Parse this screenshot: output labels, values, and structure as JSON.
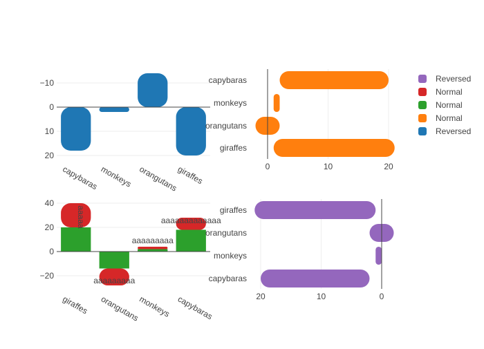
{
  "colors": {
    "blue": "#1f77b4",
    "orange": "#ff7f0e",
    "green": "#2ca02c",
    "red": "#d62728",
    "purple": "#9467bd"
  },
  "legend": [
    {
      "label": "Reversed",
      "color": "#9467bd"
    },
    {
      "label": "Normal",
      "color": "#d62728"
    },
    {
      "label": "Normal",
      "color": "#2ca02c"
    },
    {
      "label": "Normal",
      "color": "#ff7f0e"
    },
    {
      "label": "Reversed",
      "color": "#1f77b4"
    }
  ],
  "chart_data": [
    {
      "type": "bar",
      "orientation": "vertical",
      "y_reversed": true,
      "categories": [
        "capybaras",
        "monkeys",
        "orangutans",
        "giraffes"
      ],
      "series": [
        {
          "name": "Reversed",
          "color": "#1f77b4",
          "values": [
            18,
            2,
            -14,
            20
          ]
        }
      ],
      "yticks": [
        -10,
        0,
        10,
        20
      ],
      "ylim": [
        -14,
        20
      ],
      "grid": true
    },
    {
      "type": "bar",
      "orientation": "horizontal",
      "categories": [
        "capybaras",
        "monkeys",
        "orangutans",
        "giraffes"
      ],
      "series": [
        {
          "name": "Normal",
          "color": "#ff7f0e",
          "base": [
            2,
            1,
            -2,
            1
          ],
          "values": [
            18,
            1,
            4,
            20
          ]
        }
      ],
      "xticks": [
        0,
        10,
        20
      ],
      "xlim": [
        -2,
        21
      ],
      "grid": true
    },
    {
      "type": "bar",
      "orientation": "vertical",
      "stacked": true,
      "categories": [
        "giraffes",
        "orangutans",
        "monkeys",
        "capybaras"
      ],
      "series": [
        {
          "name": "Normal",
          "color": "#2ca02c",
          "values": [
            20,
            -14,
            2,
            18
          ]
        },
        {
          "name": "Normal",
          "color": "#d62728",
          "values": [
            20,
            -14,
            2,
            10
          ],
          "text": [
            "aaaaa",
            "aaaaaaaaa",
            "aaaaaaaaa",
            "aaaaaaaaaaaaa"
          ]
        }
      ],
      "yticks": [
        -20,
        0,
        20,
        40
      ],
      "ylim": [
        -28,
        40
      ],
      "grid": true
    },
    {
      "type": "bar",
      "orientation": "horizontal",
      "x_reversed": true,
      "categories": [
        "capybaras",
        "monkeys",
        "orangutans",
        "giraffes"
      ],
      "series": [
        {
          "name": "Reversed",
          "color": "#9467bd",
          "base": [
            2,
            0,
            -2,
            1
          ],
          "values": [
            18,
            1,
            4,
            20
          ]
        }
      ],
      "xticks": [
        20,
        10,
        0
      ],
      "xlim": [
        -2,
        21
      ],
      "grid": true
    }
  ]
}
